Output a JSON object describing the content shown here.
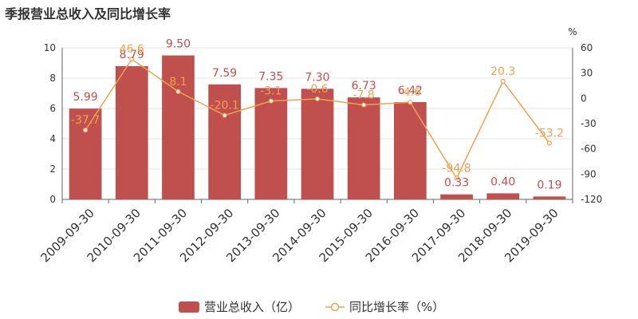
{
  "chart_data": {
    "type": "bar",
    "title": "季报营业总收入及同比增长率",
    "categories": [
      "2009-09-30",
      "2010-09-30",
      "2011-09-30",
      "2012-09-30",
      "2013-09-30",
      "2014-09-30",
      "2015-09-30",
      "2016-09-30",
      "2017-09-30",
      "2018-09-30",
      "2019-09-30"
    ],
    "series": [
      {
        "name": "营业总收入（亿）",
        "type": "bar",
        "axis": "left",
        "color": "#c0504d",
        "values": [
          5.99,
          8.79,
          9.5,
          7.59,
          7.35,
          7.3,
          6.73,
          6.42,
          0.33,
          0.4,
          0.19
        ],
        "labels": [
          "5.99",
          "8.79",
          "9.50",
          "7.59",
          "7.35",
          "7.30",
          "6.73",
          "6.42",
          "0.33",
          "0.40",
          "0.19"
        ]
      },
      {
        "name": "同比增长率（%）",
        "type": "line",
        "axis": "right",
        "color": "#f0a050",
        "values": [
          -37.7,
          46.6,
          8.1,
          -20.1,
          -3.1,
          -0.6,
          -7.8,
          -4.6,
          -94.8,
          20.3,
          -53.2
        ],
        "labels": [
          "-37.7",
          "46.6",
          "8.1",
          "-20.1",
          "-3.1",
          "-0.6",
          "-7.8",
          "-4.6",
          "-94.8",
          "20.3",
          "-53.2"
        ]
      }
    ],
    "y_left": {
      "ylim": [
        0,
        10
      ],
      "ticks": [
        "0",
        "2",
        "4",
        "6",
        "8",
        "10"
      ]
    },
    "y_right": {
      "unit": "%",
      "ylim": [
        -120,
        60
      ],
      "ticks": [
        "-120",
        "-90",
        "-60",
        "-30",
        "0",
        "30",
        "60"
      ]
    },
    "grid": true,
    "legend": "bottom-center"
  }
}
